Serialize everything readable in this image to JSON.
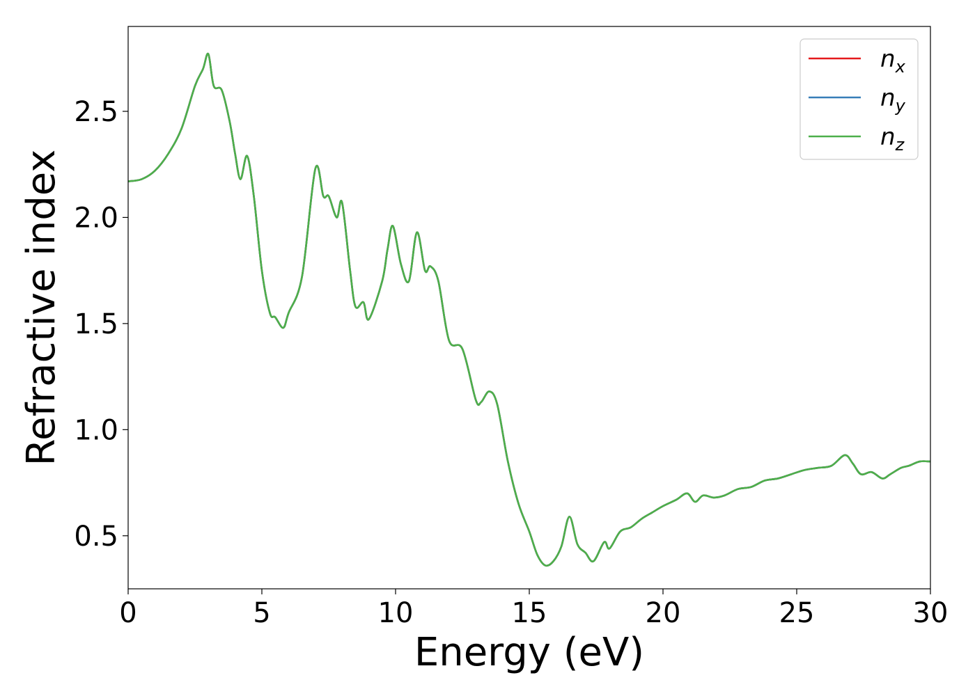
{
  "chart_data": {
    "type": "line",
    "title": "",
    "xlabel": "Energy (eV)",
    "ylabel": "Refractive index",
    "xlim": [
      0,
      30
    ],
    "ylim": [
      0.25,
      2.9
    ],
    "xticks": [
      0,
      5,
      10,
      15,
      20,
      25,
      30
    ],
    "xtick_labels": [
      "0",
      "5",
      "10",
      "15",
      "20",
      "25",
      "30"
    ],
    "yticks": [
      0.5,
      1.0,
      1.5,
      2.0,
      2.5
    ],
    "ytick_labels": [
      "0.5",
      "1.0",
      "1.5",
      "2.0",
      "2.5"
    ],
    "grid": false,
    "legend_position": "top-right",
    "x": [
      0.0,
      0.5,
      1.0,
      1.5,
      2.0,
      2.5,
      2.8,
      3.0,
      3.2,
      3.5,
      3.8,
      4.0,
      4.2,
      4.45,
      4.7,
      5.0,
      5.3,
      5.5,
      5.8,
      6.0,
      6.5,
      7.0,
      7.3,
      7.5,
      7.8,
      8.0,
      8.3,
      8.5,
      8.8,
      9.0,
      9.5,
      9.7,
      9.9,
      10.2,
      10.5,
      10.8,
      11.1,
      11.3,
      11.6,
      12.0,
      12.5,
      13.0,
      13.2,
      13.5,
      13.8,
      14.2,
      14.6,
      15.0,
      15.3,
      15.6,
      15.9,
      16.2,
      16.5,
      16.8,
      17.1,
      17.4,
      17.8,
      18.0,
      18.4,
      18.8,
      19.2,
      19.6,
      20.0,
      20.5,
      20.9,
      21.2,
      21.5,
      21.9,
      22.3,
      22.8,
      23.3,
      23.8,
      24.3,
      24.8,
      25.3,
      25.8,
      26.3,
      26.8,
      27.1,
      27.4,
      27.8,
      28.2,
      28.5,
      28.9,
      29.2,
      29.6,
      30.0
    ],
    "series": [
      {
        "name": "n_x",
        "label_base": "n",
        "label_sub": "x",
        "color": "#e41a1c",
        "values": [
          2.17,
          2.18,
          2.22,
          2.3,
          2.42,
          2.62,
          2.7,
          2.77,
          2.62,
          2.6,
          2.45,
          2.3,
          2.18,
          2.29,
          2.1,
          1.75,
          1.55,
          1.53,
          1.48,
          1.55,
          1.72,
          2.23,
          2.1,
          2.1,
          2.0,
          2.07,
          1.75,
          1.58,
          1.6,
          1.52,
          1.7,
          1.85,
          1.96,
          1.78,
          1.7,
          1.93,
          1.75,
          1.77,
          1.7,
          1.42,
          1.38,
          1.14,
          1.13,
          1.18,
          1.12,
          0.85,
          0.65,
          0.52,
          0.41,
          0.36,
          0.38,
          0.45,
          0.59,
          0.46,
          0.42,
          0.38,
          0.47,
          0.44,
          0.52,
          0.54,
          0.58,
          0.61,
          0.64,
          0.67,
          0.7,
          0.66,
          0.69,
          0.68,
          0.69,
          0.72,
          0.73,
          0.76,
          0.77,
          0.79,
          0.81,
          0.82,
          0.83,
          0.88,
          0.84,
          0.79,
          0.8,
          0.77,
          0.79,
          0.82,
          0.83,
          0.85,
          0.85
        ]
      },
      {
        "name": "n_y",
        "label_base": "n",
        "label_sub": "y",
        "color": "#377eb8",
        "values": [
          2.17,
          2.18,
          2.22,
          2.3,
          2.42,
          2.62,
          2.7,
          2.77,
          2.62,
          2.6,
          2.45,
          2.3,
          2.18,
          2.29,
          2.1,
          1.75,
          1.55,
          1.53,
          1.48,
          1.55,
          1.72,
          2.23,
          2.1,
          2.1,
          2.0,
          2.07,
          1.75,
          1.58,
          1.6,
          1.52,
          1.7,
          1.85,
          1.96,
          1.78,
          1.7,
          1.93,
          1.75,
          1.77,
          1.7,
          1.42,
          1.38,
          1.14,
          1.13,
          1.18,
          1.12,
          0.85,
          0.65,
          0.52,
          0.41,
          0.36,
          0.38,
          0.45,
          0.59,
          0.46,
          0.42,
          0.38,
          0.47,
          0.44,
          0.52,
          0.54,
          0.58,
          0.61,
          0.64,
          0.67,
          0.7,
          0.66,
          0.69,
          0.68,
          0.69,
          0.72,
          0.73,
          0.76,
          0.77,
          0.79,
          0.81,
          0.82,
          0.83,
          0.88,
          0.84,
          0.79,
          0.8,
          0.77,
          0.79,
          0.82,
          0.83,
          0.85,
          0.85
        ]
      },
      {
        "name": "n_z",
        "label_base": "n",
        "label_sub": "z",
        "color": "#4daf4a",
        "values": [
          2.17,
          2.18,
          2.22,
          2.3,
          2.42,
          2.62,
          2.7,
          2.77,
          2.62,
          2.6,
          2.45,
          2.3,
          2.18,
          2.29,
          2.1,
          1.75,
          1.55,
          1.53,
          1.48,
          1.55,
          1.72,
          2.23,
          2.1,
          2.1,
          2.0,
          2.07,
          1.75,
          1.58,
          1.6,
          1.52,
          1.7,
          1.85,
          1.96,
          1.78,
          1.7,
          1.93,
          1.75,
          1.77,
          1.7,
          1.42,
          1.38,
          1.14,
          1.13,
          1.18,
          1.12,
          0.85,
          0.65,
          0.52,
          0.41,
          0.36,
          0.38,
          0.45,
          0.59,
          0.46,
          0.42,
          0.38,
          0.47,
          0.44,
          0.52,
          0.54,
          0.58,
          0.61,
          0.64,
          0.67,
          0.7,
          0.66,
          0.69,
          0.68,
          0.69,
          0.72,
          0.73,
          0.76,
          0.77,
          0.79,
          0.81,
          0.82,
          0.83,
          0.88,
          0.84,
          0.79,
          0.8,
          0.77,
          0.79,
          0.82,
          0.83,
          0.85,
          0.85
        ]
      }
    ]
  }
}
